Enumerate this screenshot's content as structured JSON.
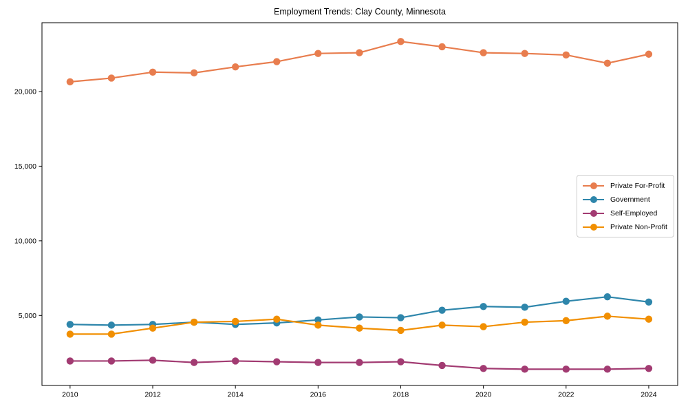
{
  "page": {
    "background": "#ffffff",
    "axis_color": "#000000",
    "text_color": "#000000"
  },
  "chart_data": {
    "type": "line",
    "title": "Employment Trends: Clay County, Minnesota",
    "xlabel": "",
    "ylabel": "",
    "grid": false,
    "legend_position": "center-right",
    "legend_border_color": "#cccccc",
    "x": [
      2010,
      2011,
      2012,
      2013,
      2014,
      2015,
      2016,
      2017,
      2018,
      2019,
      2020,
      2021,
      2022,
      2023,
      2024
    ],
    "x_ticks": [
      2010,
      2012,
      2014,
      2016,
      2018,
      2020,
      2022,
      2024
    ],
    "x_tick_labels": [
      "2010",
      "2012",
      "2014",
      "2016",
      "2018",
      "2020",
      "2022",
      "2024"
    ],
    "y_ticks": [
      5000,
      10000,
      15000,
      20000
    ],
    "y_tick_labels": [
      "5,000",
      "10,000",
      "15,000",
      "20,000"
    ],
    "xlim": [
      2009.32,
      2024.7
    ],
    "ylim": [
      310,
      24610
    ],
    "series": [
      {
        "name": "Private For-Profit",
        "color": "#E87D4E",
        "values": [
          20650,
          20900,
          21300,
          21250,
          21650,
          22000,
          22550,
          22600,
          23350,
          23000,
          22600,
          22550,
          22450,
          21900,
          22500
        ]
      },
      {
        "name": "Government",
        "color": "#2E86AB",
        "values": [
          4400,
          4350,
          4400,
          4550,
          4400,
          4500,
          4700,
          4900,
          4850,
          5350,
          5600,
          5550,
          5950,
          6250,
          5900
        ]
      },
      {
        "name": "Self-Employed",
        "color": "#A23B72",
        "values": [
          1950,
          1950,
          2000,
          1850,
          1950,
          1900,
          1850,
          1850,
          1900,
          1650,
          1450,
          1400,
          1400,
          1400,
          1450
        ]
      },
      {
        "name": "Private Non-Profit",
        "color": "#F18F01",
        "values": [
          3750,
          3750,
          4150,
          4550,
          4600,
          4750,
          4350,
          4150,
          4000,
          4350,
          4250,
          4550,
          4650,
          4950,
          4750
        ]
      }
    ]
  }
}
